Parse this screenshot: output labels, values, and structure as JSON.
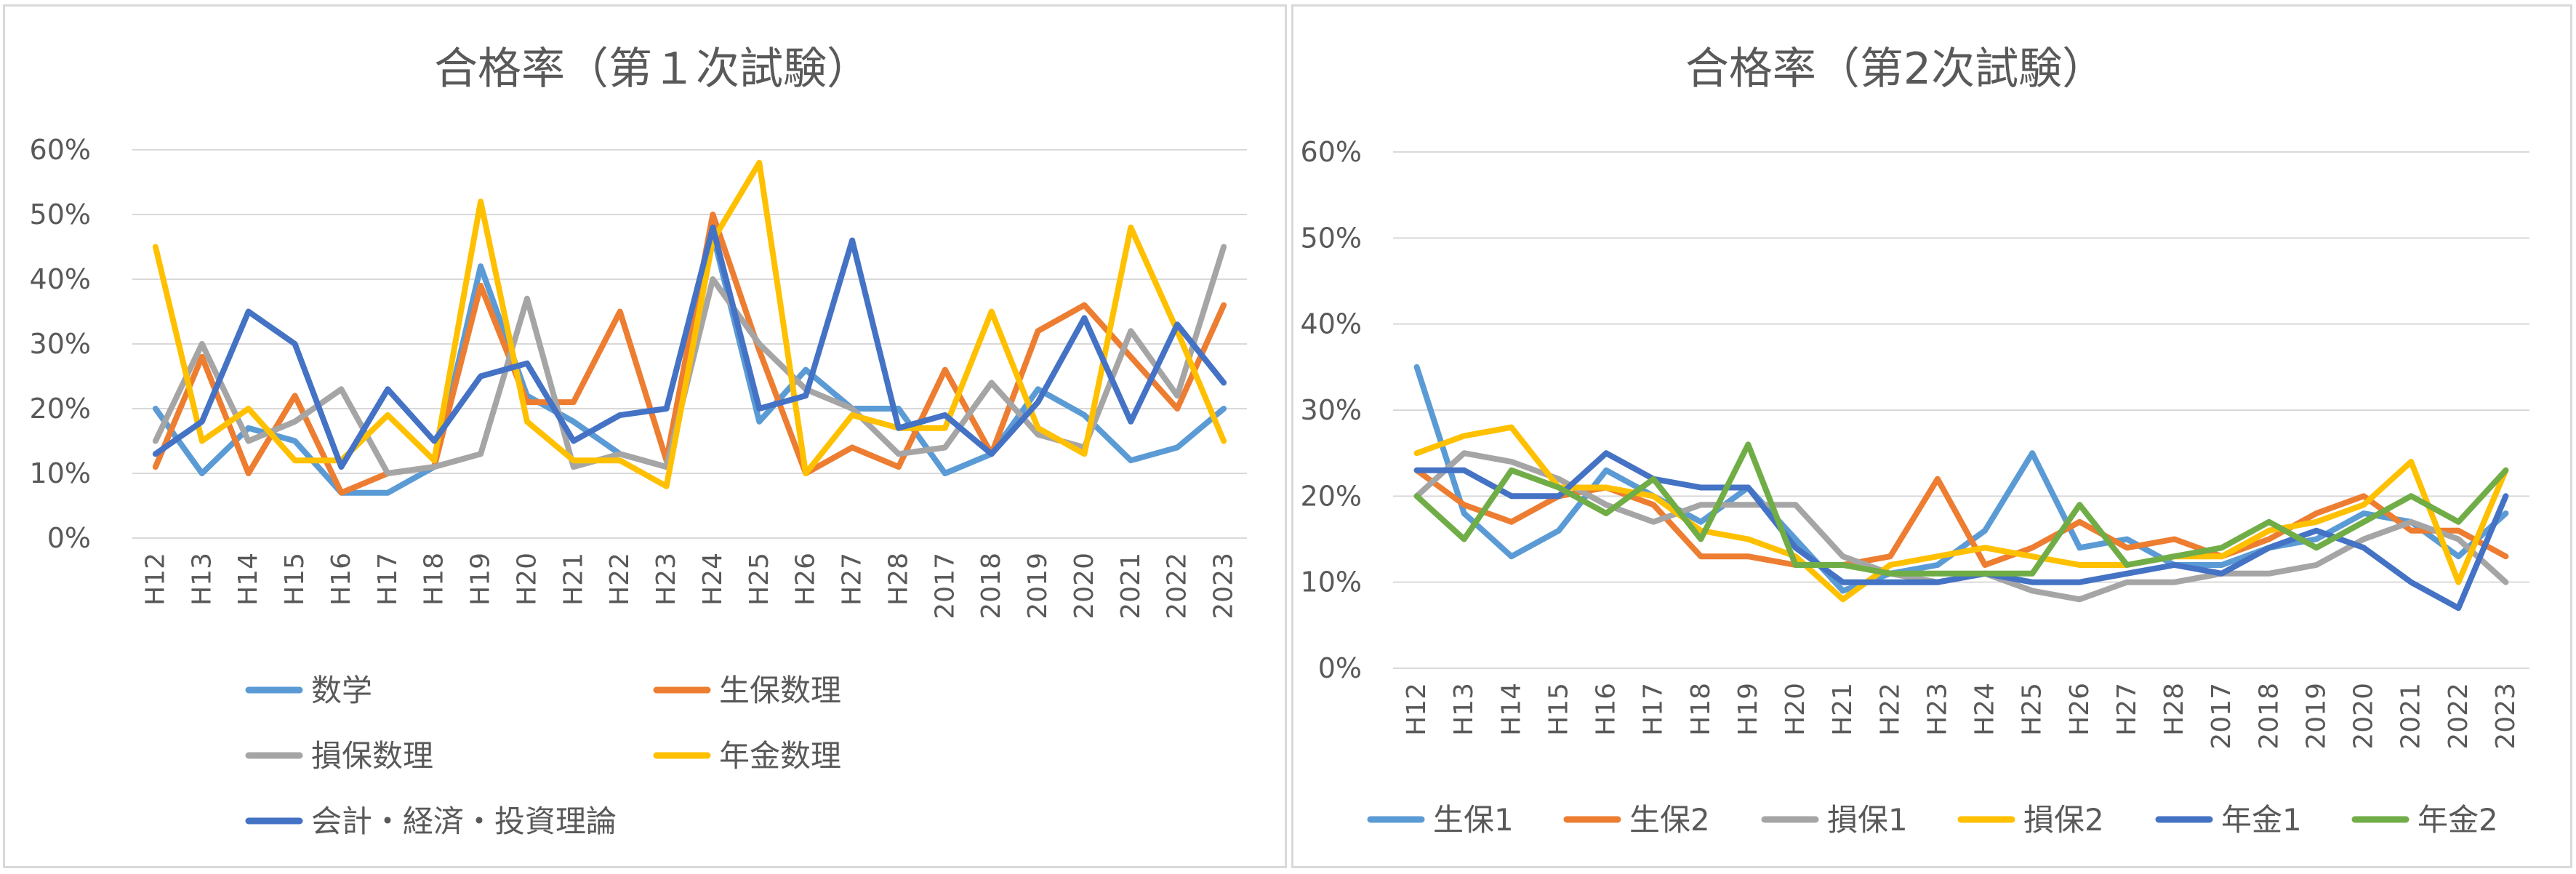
{
  "chart_data": [
    {
      "type": "line",
      "title": "合格率（第１次試験）",
      "categories": [
        "H12",
        "H13",
        "H14",
        "H15",
        "H16",
        "H17",
        "H18",
        "H19",
        "H20",
        "H21",
        "H22",
        "H23",
        "H24",
        "H25",
        "H26",
        "H27",
        "H28",
        "2017",
        "2018",
        "2019",
        "2020",
        "2021",
        "2022",
        "2023"
      ],
      "y_ticks": [
        "0%",
        "10%",
        "20%",
        "30%",
        "40%",
        "50%",
        "60%"
      ],
      "ylim": [
        0,
        60
      ],
      "grid": true,
      "legend_position": "bottom",
      "series": [
        {
          "name": "数学",
          "color": "#5b9bd5",
          "values": [
            20,
            10,
            17,
            15,
            7,
            7,
            11,
            42,
            22,
            18,
            13,
            11,
            47,
            18,
            26,
            20,
            20,
            10,
            13,
            23,
            19,
            12,
            14,
            20
          ]
        },
        {
          "name": "生保数理",
          "color": "#ed7d31",
          "values": [
            11,
            28,
            10,
            22,
            7,
            10,
            11,
            39,
            21,
            21,
            35,
            12,
            50,
            29,
            10,
            14,
            11,
            26,
            13,
            32,
            36,
            28,
            20,
            36
          ]
        },
        {
          "name": "損保数理",
          "color": "#a5a5a5",
          "values": [
            15,
            30,
            15,
            18,
            23,
            10,
            11,
            13,
            37,
            11,
            13,
            11,
            40,
            30,
            23,
            20,
            13,
            14,
            24,
            16,
            14,
            32,
            22,
            45
          ]
        },
        {
          "name": "年金数理",
          "color": "#ffc000",
          "values": [
            45,
            15,
            20,
            12,
            12,
            19,
            12,
            52,
            18,
            12,
            12,
            8,
            46,
            58,
            10,
            19,
            17,
            17,
            35,
            17,
            13,
            48,
            32,
            15
          ]
        },
        {
          "name": "会計・経済・投資理論",
          "color": "#4472c4",
          "values": [
            13,
            18,
            35,
            30,
            11,
            23,
            15,
            25,
            27,
            15,
            19,
            20,
            48,
            20,
            22,
            46,
            17,
            19,
            13,
            21,
            34,
            18,
            33,
            24
          ]
        }
      ]
    },
    {
      "type": "line",
      "title": "合格率（第2次試験）",
      "categories": [
        "H12",
        "H13",
        "H14",
        "H15",
        "H16",
        "H17",
        "H18",
        "H19",
        "H20",
        "H21",
        "H22",
        "H23",
        "H24",
        "H25",
        "H26",
        "H27",
        "H28",
        "2017",
        "2018",
        "2019",
        "2020",
        "2021",
        "2022",
        "2023"
      ],
      "y_ticks": [
        "0%",
        "10%",
        "20%",
        "30%",
        "40%",
        "50%",
        "60%"
      ],
      "ylim": [
        0,
        60
      ],
      "grid": true,
      "legend_position": "bottom",
      "series": [
        {
          "name": "生保1",
          "color": "#5b9bd5",
          "values": [
            35,
            18,
            13,
            16,
            23,
            20,
            17,
            21,
            15,
            9,
            11,
            12,
            16,
            25,
            14,
            15,
            12,
            12,
            14,
            15,
            18,
            17,
            13,
            18
          ]
        },
        {
          "name": "生保2",
          "color": "#ed7d31",
          "values": [
            23,
            19,
            17,
            20,
            21,
            19,
            13,
            13,
            12,
            12,
            13,
            22,
            12,
            14,
            17,
            14,
            15,
            13,
            15,
            18,
            20,
            16,
            16,
            13
          ]
        },
        {
          "name": "損保1",
          "color": "#a5a5a5",
          "values": [
            20,
            25,
            24,
            22,
            19,
            17,
            19,
            19,
            19,
            13,
            11,
            10,
            11,
            9,
            8,
            10,
            10,
            11,
            11,
            12,
            15,
            17,
            15,
            10
          ]
        },
        {
          "name": "損保2",
          "color": "#ffc000",
          "values": [
            25,
            27,
            28,
            21,
            21,
            20,
            16,
            15,
            13,
            8,
            12,
            13,
            14,
            13,
            12,
            12,
            13,
            13,
            16,
            17,
            19,
            24,
            10,
            23
          ]
        },
        {
          "name": "年金1",
          "color": "#4472c4",
          "values": [
            23,
            23,
            20,
            20,
            25,
            22,
            21,
            21,
            14,
            10,
            10,
            10,
            11,
            10,
            10,
            11,
            12,
            11,
            14,
            16,
            14,
            10,
            7,
            20
          ]
        },
        {
          "name": "年金2",
          "color": "#70ad47",
          "values": [
            20,
            15,
            23,
            21,
            18,
            22,
            15,
            26,
            12,
            12,
            11,
            11,
            11,
            11,
            19,
            12,
            13,
            14,
            17,
            14,
            17,
            20,
            17,
            23
          ]
        }
      ]
    }
  ]
}
